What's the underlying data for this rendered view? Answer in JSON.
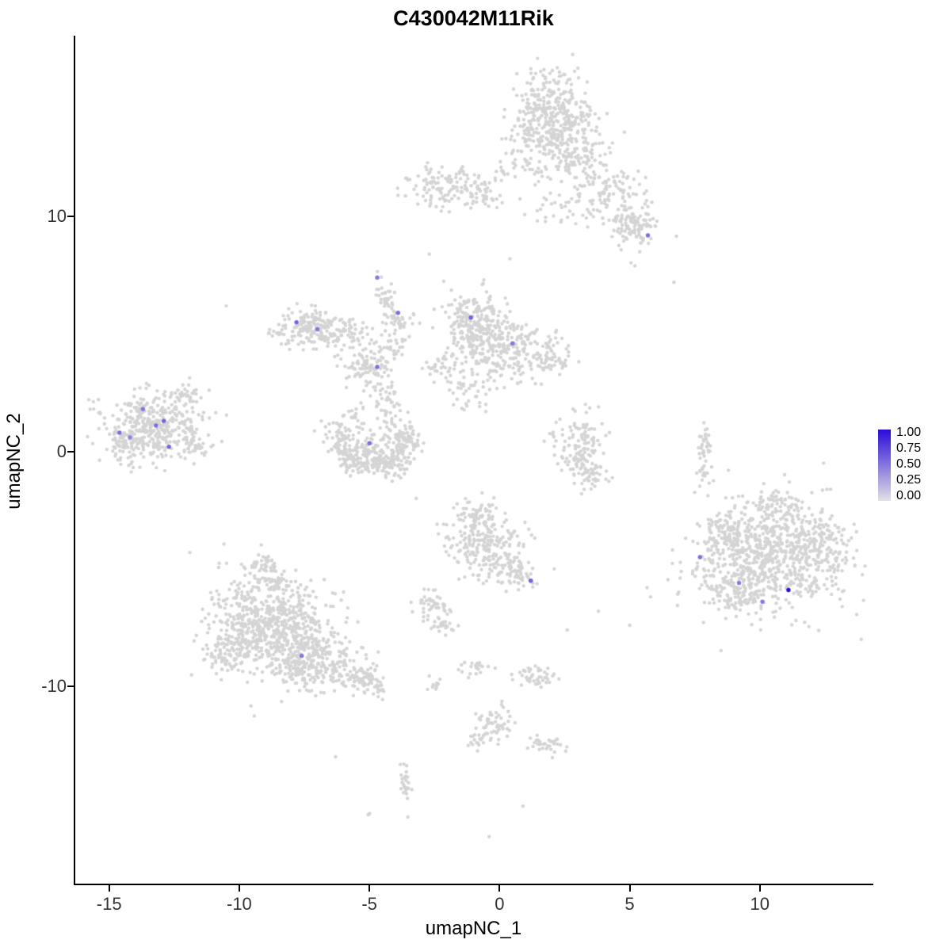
{
  "title": "C430042M11Rik",
  "axes": {
    "xlabel": "umapNC_1",
    "ylabel": "umapNC_2",
    "x_tick_labels": [
      "-15",
      "-10",
      "-5",
      "0",
      "5",
      "10"
    ],
    "x_tick_values": [
      -15,
      -10,
      -5,
      0,
      5,
      10
    ],
    "y_tick_labels": [
      "-10",
      "0",
      "10"
    ],
    "y_tick_values": [
      -10,
      0,
      10
    ]
  },
  "legend": {
    "tick_labels": [
      "1.00",
      "0.75",
      "0.50",
      "0.25",
      "0.00"
    ],
    "gradient_high_color": "#2A0BD9",
    "gradient_low_color": "#E2E2E2"
  },
  "style": {
    "background_point_color": "#D4D4D4",
    "axis_color": "#000000",
    "tick_text_color": "#333333",
    "point_radius": 2.2,
    "expressing_point_radius": 2.7
  },
  "chart_data": {
    "type": "scatter",
    "title": "C430042M11Rik",
    "xlabel": "umapNC_1",
    "ylabel": "umapNC_2",
    "xlim": [
      -16.3,
      14.3
    ],
    "ylim": [
      -18.4,
      17.7
    ],
    "legend_values": [
      1.0,
      0.75,
      0.5,
      0.25,
      0.0
    ],
    "color_scale": {
      "low_value": 0.0,
      "high_value": 1.0,
      "low_color": "#E2E2E2",
      "high_color": "#2A0BD9"
    },
    "seed": 42,
    "cluster_fields": [
      "x_center",
      "y_center",
      "x_sd",
      "y_sd",
      "n_points",
      "rotation_deg"
    ],
    "background_clusters": [
      [
        1.9,
        14.3,
        0.8,
        0.9,
        380,
        0
      ],
      [
        2.9,
        12.6,
        0.7,
        0.6,
        130,
        0
      ],
      [
        4.3,
        11.2,
        0.6,
        0.5,
        80,
        0
      ],
      [
        5.1,
        9.6,
        0.5,
        0.5,
        110,
        0
      ],
      [
        2.5,
        10.5,
        1.0,
        0.6,
        45,
        0
      ],
      [
        0.8,
        12.0,
        0.5,
        0.4,
        35,
        0
      ],
      [
        -2.0,
        11.3,
        0.8,
        0.45,
        130,
        0
      ],
      [
        -0.6,
        10.9,
        0.35,
        0.3,
        30,
        0
      ],
      [
        -7.2,
        5.3,
        0.55,
        0.4,
        150,
        0
      ],
      [
        -6.0,
        4.9,
        0.6,
        0.35,
        70,
        0
      ],
      [
        -4.35,
        6.5,
        0.15,
        0.55,
        40,
        15
      ],
      [
        -3.9,
        5.4,
        0.3,
        0.3,
        35,
        0
      ],
      [
        -5.0,
        3.6,
        0.45,
        0.4,
        90,
        0
      ],
      [
        -4.4,
        2.4,
        0.3,
        0.5,
        40,
        0
      ],
      [
        -4.5,
        4.5,
        0.5,
        0.3,
        30,
        0
      ],
      [
        -8.3,
        4.9,
        0.35,
        0.25,
        18,
        0
      ],
      [
        -1.0,
        5.5,
        0.55,
        0.65,
        220,
        0
      ],
      [
        0.3,
        4.6,
        0.8,
        0.5,
        160,
        0
      ],
      [
        1.8,
        4.0,
        0.5,
        0.4,
        70,
        0
      ],
      [
        -2.1,
        3.6,
        0.4,
        0.3,
        40,
        0
      ],
      [
        -1.2,
        2.5,
        0.4,
        0.35,
        35,
        0
      ],
      [
        -0.1,
        3.4,
        0.6,
        0.4,
        50,
        0
      ],
      [
        -6.2,
        0.7,
        0.3,
        0.35,
        55,
        0
      ],
      [
        -5.7,
        -0.2,
        0.3,
        0.35,
        65,
        0
      ],
      [
        -4.9,
        -0.6,
        0.55,
        0.3,
        90,
        0
      ],
      [
        -4.0,
        -0.2,
        0.3,
        0.35,
        65,
        0
      ],
      [
        -3.5,
        0.6,
        0.3,
        0.35,
        55,
        0
      ],
      [
        -4.9,
        0.3,
        0.7,
        0.4,
        60,
        0
      ],
      [
        -5.6,
        1.5,
        0.25,
        0.3,
        18,
        0
      ],
      [
        -4.2,
        1.5,
        0.25,
        0.3,
        15,
        0
      ],
      [
        -13.3,
        1.0,
        1.0,
        0.7,
        420,
        0
      ],
      [
        -12.0,
        2.4,
        0.25,
        0.3,
        30,
        0
      ],
      [
        -14.5,
        0.3,
        0.3,
        0.3,
        30,
        0
      ],
      [
        -11.7,
        0.2,
        0.3,
        0.25,
        25,
        0
      ],
      [
        3.0,
        0.3,
        0.5,
        0.6,
        120,
        0
      ],
      [
        3.5,
        -1.0,
        0.3,
        0.4,
        45,
        0
      ],
      [
        7.9,
        0.1,
        0.12,
        0.55,
        40,
        0
      ],
      [
        7.8,
        -1.1,
        0.1,
        0.2,
        8,
        0
      ],
      [
        10.3,
        -4.5,
        1.5,
        1.2,
        750,
        0
      ],
      [
        12.3,
        -4.0,
        0.6,
        0.6,
        120,
        0
      ],
      [
        8.8,
        -3.4,
        0.5,
        0.5,
        80,
        0
      ],
      [
        10.7,
        -2.3,
        0.5,
        0.35,
        60,
        0
      ],
      [
        9.0,
        -6.0,
        0.5,
        0.4,
        70,
        0
      ],
      [
        -0.6,
        -3.9,
        0.7,
        0.8,
        230,
        0
      ],
      [
        0.5,
        -5.0,
        0.4,
        0.35,
        60,
        0
      ],
      [
        -0.9,
        -2.6,
        0.4,
        0.3,
        35,
        0
      ],
      [
        1.0,
        -5.5,
        0.2,
        0.2,
        15,
        0
      ],
      [
        -2.6,
        -6.5,
        0.35,
        0.3,
        45,
        0
      ],
      [
        -2.1,
        -7.4,
        0.25,
        0.25,
        25,
        0
      ],
      [
        -8.8,
        -7.5,
        1.2,
        1.1,
        700,
        0
      ],
      [
        -6.8,
        -8.8,
        0.9,
        0.5,
        180,
        -20
      ],
      [
        -5.1,
        -9.8,
        0.5,
        0.3,
        80,
        -15
      ],
      [
        -9.2,
        -4.9,
        0.35,
        0.3,
        45,
        0
      ],
      [
        -8.5,
        -5.6,
        0.3,
        0.25,
        30,
        0
      ],
      [
        -10.6,
        -8.6,
        0.4,
        0.4,
        60,
        0
      ],
      [
        -7.6,
        -9.5,
        0.5,
        0.4,
        70,
        0
      ],
      [
        -1.0,
        -9.2,
        0.25,
        0.2,
        20,
        0
      ],
      [
        1.5,
        -9.6,
        0.35,
        0.25,
        45,
        0
      ],
      [
        -0.2,
        -11.6,
        0.35,
        0.35,
        55,
        0
      ],
      [
        -0.9,
        -12.3,
        0.2,
        0.2,
        18,
        0
      ],
      [
        1.8,
        -12.4,
        0.35,
        0.2,
        35,
        0
      ],
      [
        -3.6,
        -14.3,
        0.1,
        0.5,
        25,
        0
      ],
      [
        -2.5,
        -9.8,
        0.2,
        0.15,
        10,
        0
      ],
      [
        -5.0,
        -15.5,
        0.08,
        0.08,
        3,
        0
      ]
    ],
    "background_singletons": [
      [
        -10.5,
        6.2
      ],
      [
        6.7,
        7.2
      ],
      [
        -2.7,
        8.4
      ],
      [
        0.4,
        8.2
      ],
      [
        5.2,
        7.9
      ],
      [
        3.3,
        2.0
      ],
      [
        -3.2,
        -2.0
      ],
      [
        -2.4,
        -3.1
      ],
      [
        3.8,
        -6.8
      ],
      [
        5.0,
        -7.4
      ],
      [
        2.1,
        -5.0
      ],
      [
        2.6,
        -7.6
      ],
      [
        -11.9,
        -4.3
      ],
      [
        -0.4,
        -16.4
      ],
      [
        0.9,
        -15.1
      ],
      [
        -6.3,
        -13.0
      ]
    ],
    "cell_fields": [
      "x",
      "y",
      "expression"
    ],
    "expressing_cells": [
      [
        5.7,
        9.2,
        0.55
      ],
      [
        -4.7,
        7.4,
        0.5
      ],
      [
        -3.9,
        5.9,
        0.55
      ],
      [
        -7.8,
        5.5,
        0.6
      ],
      [
        -7.0,
        5.2,
        0.5
      ],
      [
        -1.1,
        5.7,
        0.6
      ],
      [
        0.5,
        4.6,
        0.5
      ],
      [
        -4.7,
        3.6,
        0.55
      ],
      [
        -13.7,
        1.8,
        0.5
      ],
      [
        -12.9,
        1.3,
        0.6
      ],
      [
        -13.2,
        1.1,
        0.55
      ],
      [
        -14.6,
        0.8,
        0.55
      ],
      [
        -14.2,
        0.6,
        0.45
      ],
      [
        -12.7,
        0.2,
        0.6
      ],
      [
        -5.0,
        0.35,
        0.55
      ],
      [
        7.7,
        -4.5,
        0.55
      ],
      [
        9.2,
        -5.6,
        0.5
      ],
      [
        11.1,
        -5.9,
        1.0
      ],
      [
        10.1,
        -6.4,
        0.5
      ],
      [
        1.2,
        -5.5,
        0.6
      ],
      [
        -7.6,
        -8.7,
        0.5
      ]
    ]
  }
}
